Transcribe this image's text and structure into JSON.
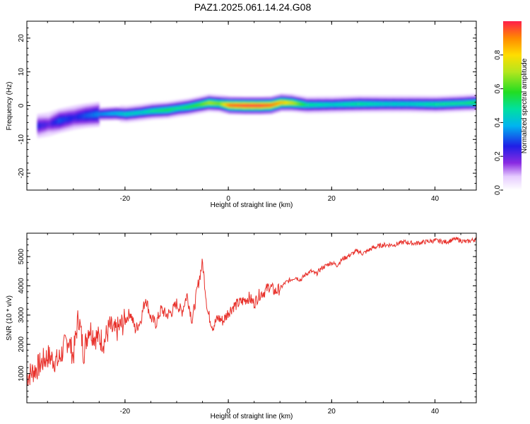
{
  "chart_data": [
    {
      "type": "heatmap",
      "title": "PAZ1.2025.061.14.24.G08",
      "xlabel": "Height of straight line (km)",
      "ylabel": "Frequency (Hz)",
      "xlim": [
        -39,
        48
      ],
      "ylim": [
        -25,
        25
      ],
      "xticks": [
        "-20",
        "0",
        "20",
        "40"
      ],
      "yticks": [
        "-20",
        "-10",
        "0",
        "10",
        "20"
      ],
      "colorbar": {
        "label": "Normalized spectral amplitude",
        "range": [
          0,
          1
        ],
        "ticks": [
          "0.0",
          "0.2",
          "0.4",
          "0.6",
          "0.8"
        ]
      },
      "ridge": {
        "x": [
          -37,
          -35,
          -33,
          -30,
          -28,
          -25,
          -22,
          -20,
          -17,
          -15,
          -12,
          -10,
          -8,
          -6,
          -4,
          -2,
          0,
          3,
          6,
          8,
          10,
          12,
          15,
          20,
          25,
          30,
          35,
          40,
          45,
          48
        ],
        "frequency": [
          -6,
          -5.5,
          -4.5,
          -3.5,
          -3,
          -2.5,
          -2.3,
          -2.5,
          -2,
          -1.6,
          -1.3,
          -0.8,
          -0.4,
          0.2,
          0.8,
          0.6,
          0.1,
          0,
          0,
          0.1,
          0.9,
          0.8,
          0.2,
          0.3,
          0.5,
          0.5,
          0.5,
          0.4,
          0.7,
          0.9
        ],
        "amplitude": [
          0.25,
          0.2,
          0.3,
          0.25,
          0.3,
          0.35,
          0.4,
          0.45,
          0.45,
          0.5,
          0.55,
          0.5,
          0.55,
          0.6,
          0.7,
          0.65,
          0.95,
          1.0,
          1.0,
          0.95,
          0.85,
          0.75,
          0.5,
          0.45,
          0.5,
          0.45,
          0.45,
          0.5,
          0.5,
          0.55
        ]
      }
    },
    {
      "type": "line",
      "xlabel": "Height of straight line (km)",
      "ylabel": "SNR (10 * v/v)",
      "xlim": [
        -39,
        48
      ],
      "ylim": [
        0,
        5800
      ],
      "xticks": [
        "-20",
        "0",
        "20",
        "40"
      ],
      "yticks": [
        "1000",
        "2000",
        "3000",
        "4000",
        "5000"
      ],
      "color": "#e8302a",
      "x": [
        -39,
        -37,
        -35,
        -33,
        -31,
        -30,
        -29,
        -28,
        -27,
        -26,
        -25,
        -24,
        -23,
        -22,
        -21,
        -20,
        -19,
        -18,
        -17,
        -16,
        -15,
        -14,
        -13,
        -12,
        -11,
        -10,
        -9,
        -8,
        -7,
        -6,
        -5,
        -4,
        -3,
        -2,
        -1,
        0,
        1,
        2,
        3,
        4,
        5,
        6,
        7,
        8,
        9,
        10,
        11,
        12,
        13,
        14,
        15,
        16,
        17,
        18,
        19,
        20,
        21,
        22,
        23,
        24,
        25,
        26,
        28,
        30,
        32,
        34,
        36,
        38,
        40,
        42,
        44,
        46,
        47,
        48
      ],
      "y": [
        900,
        1200,
        1600,
        1400,
        2200,
        1600,
        3000,
        1700,
        2600,
        2300,
        2200,
        2100,
        2600,
        2400,
        2600,
        2800,
        3100,
        2500,
        2800,
        3600,
        2900,
        2700,
        3200,
        3000,
        3100,
        3400,
        3100,
        3700,
        2800,
        3900,
        4800,
        3100,
        2600,
        2900,
        2800,
        3100,
        3300,
        3400,
        3500,
        3600,
        3400,
        3700,
        3800,
        4000,
        3800,
        3900,
        4100,
        4200,
        4300,
        4200,
        4400,
        4500,
        4400,
        4600,
        4700,
        4800,
        4700,
        4900,
        5000,
        5100,
        5200,
        5100,
        5300,
        5400,
        5400,
        5500,
        5450,
        5500,
        5550,
        5500,
        5600,
        5500,
        5550,
        5600
      ]
    }
  ]
}
